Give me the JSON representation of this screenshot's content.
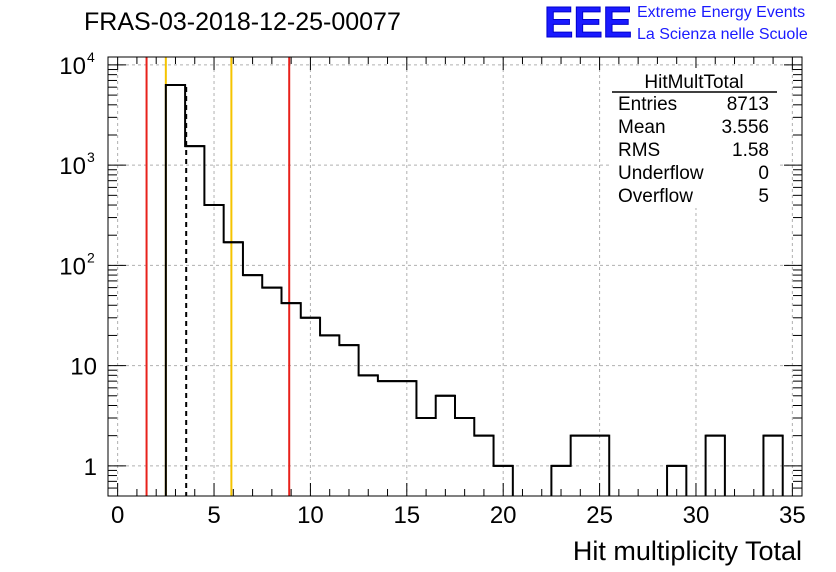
{
  "title": "FRAS-03-2018-12-25-00077",
  "logo": {
    "mark": "EEE",
    "line1": "Extreme Energy Events",
    "line2": "La Scienza nelle Scuole"
  },
  "colors": {
    "histogram": "#000000",
    "red_lines": "#e8211b",
    "yellow_lines": "#f5c400",
    "grid": "#b0b0b0",
    "logo": "#1a1aff"
  },
  "chart_data": {
    "type": "histogram",
    "title": "FRAS-03-2018-12-25-00077",
    "xlabel": "Hit multiplicity Total",
    "ylabel": "",
    "xlim": [
      -0.5,
      35.5
    ],
    "ylim": [
      0.5,
      12000
    ],
    "yscale": "log",
    "grid": true,
    "bin_width": 1,
    "bins": [
      {
        "low": 2.5,
        "count": 6300
      },
      {
        "low": 3.5,
        "count": 1550
      },
      {
        "low": 4.5,
        "count": 400
      },
      {
        "low": 5.5,
        "count": 170
      },
      {
        "low": 6.5,
        "count": 80
      },
      {
        "low": 7.5,
        "count": 60
      },
      {
        "low": 8.5,
        "count": 42
      },
      {
        "low": 9.5,
        "count": 30
      },
      {
        "low": 10.5,
        "count": 20
      },
      {
        "low": 11.5,
        "count": 16
      },
      {
        "low": 12.5,
        "count": 8
      },
      {
        "low": 13.5,
        "count": 7
      },
      {
        "low": 14.5,
        "count": 7
      },
      {
        "low": 15.5,
        "count": 3
      },
      {
        "low": 16.5,
        "count": 5
      },
      {
        "low": 17.5,
        "count": 3
      },
      {
        "low": 18.5,
        "count": 2
      },
      {
        "low": 19.5,
        "count": 1
      },
      {
        "low": 22.5,
        "count": 1
      },
      {
        "low": 23.5,
        "count": 2
      },
      {
        "low": 24.5,
        "count": 2
      },
      {
        "low": 28.5,
        "count": 1
      },
      {
        "low": 30.5,
        "count": 2
      },
      {
        "low": 33.5,
        "count": 2
      }
    ],
    "x_ticks": [
      0,
      5,
      10,
      15,
      20,
      25,
      30,
      35
    ],
    "x_tick_labels": [
      "0",
      "5",
      "10",
      "15",
      "20",
      "25",
      "30",
      "35"
    ],
    "y_ticks": [
      {
        "value": 1,
        "base": "1",
        "exp": ""
      },
      {
        "value": 10,
        "base": "10",
        "exp": ""
      },
      {
        "value": 100,
        "base": "10",
        "exp": "2"
      },
      {
        "value": 1000,
        "base": "10",
        "exp": "3"
      },
      {
        "value": 10000,
        "base": "10",
        "exp": "4"
      }
    ],
    "vertical_lines": [
      {
        "x": 1.5,
        "style": "red"
      },
      {
        "x": 2.5,
        "style": "yellow"
      },
      {
        "x": 3.556,
        "style": "dashed"
      },
      {
        "x": 5.9,
        "style": "yellow"
      },
      {
        "x": 8.9,
        "style": "red"
      }
    ],
    "stats": {
      "name": "HitMultTotal",
      "rows": [
        {
          "label": "Entries",
          "value": "8713"
        },
        {
          "label": "Mean",
          "value": "3.556"
        },
        {
          "label": "RMS",
          "value": "1.58"
        },
        {
          "label": "Underflow",
          "value": "0"
        },
        {
          "label": "Overflow",
          "value": "5"
        }
      ]
    }
  }
}
